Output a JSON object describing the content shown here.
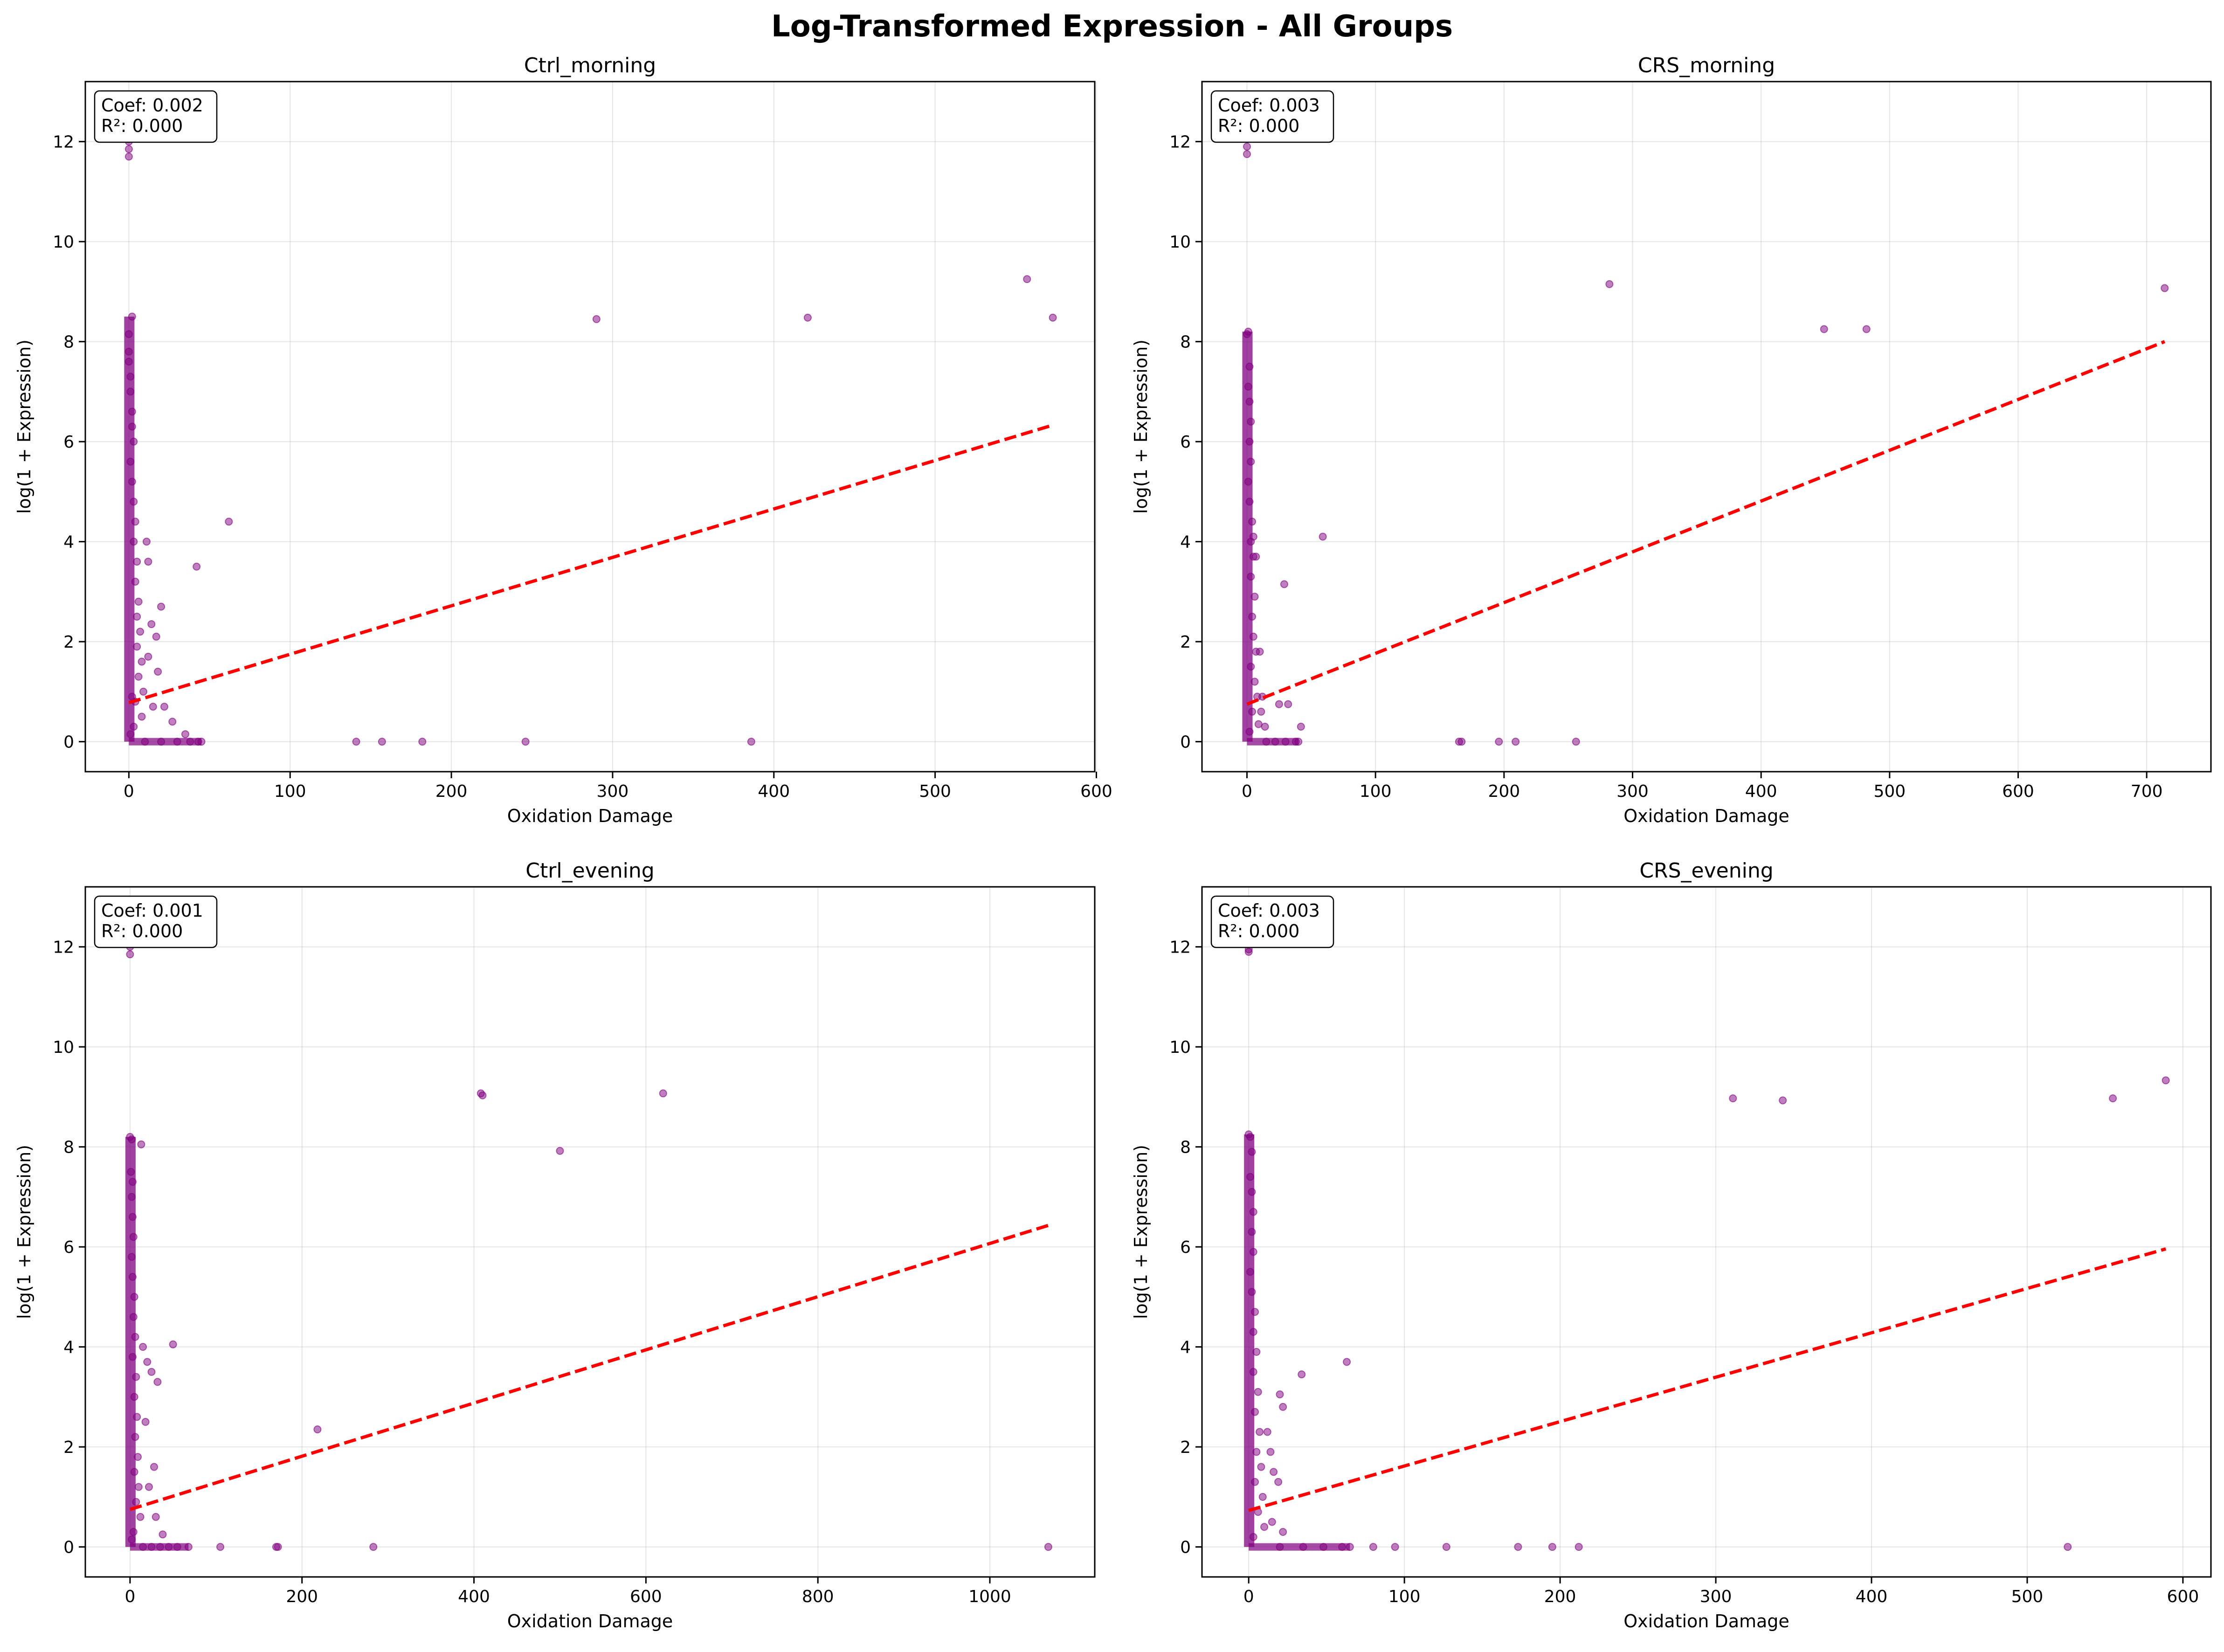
{
  "figure": {
    "title": "Log-Transformed Expression - All Groups"
  },
  "chart_data": [
    {
      "type": "scatter",
      "title": "Ctrl_morning",
      "xlabel": "Oxidation Damage",
      "ylabel": "log(1 + Expression)",
      "xlim": [
        -27,
        599
      ],
      "ylim": [
        -0.6,
        13.2
      ],
      "xticks": [
        0,
        100,
        200,
        300,
        400,
        500,
        600
      ],
      "yticks": [
        0,
        2,
        4,
        6,
        8,
        10,
        12
      ],
      "grid": true,
      "marker_color": "#800080",
      "fit_color": "#ff0000",
      "stats": {
        "coef": "Coef: 0.002",
        "r2": "R²: 0.000"
      },
      "fit_line": {
        "x": [
          0,
          573
        ],
        "y": [
          0.78,
          6.33
        ]
      },
      "points": [
        [
          0,
          11.85
        ],
        [
          0,
          11.7
        ],
        [
          0,
          12.0
        ],
        [
          0,
          8.15
        ],
        [
          0,
          7.8
        ],
        [
          0,
          7.6
        ],
        [
          1,
          7.3
        ],
        [
          1,
          7.0
        ],
        [
          2,
          6.6
        ],
        [
          2,
          6.3
        ],
        [
          3,
          6.0
        ],
        [
          1,
          5.6
        ],
        [
          2,
          5.2
        ],
        [
          3,
          4.8
        ],
        [
          4,
          4.4
        ],
        [
          3,
          4.0
        ],
        [
          5,
          3.6
        ],
        [
          4,
          3.2
        ],
        [
          6,
          2.8
        ],
        [
          5,
          2.5
        ],
        [
          7,
          2.2
        ],
        [
          5,
          1.9
        ],
        [
          8,
          1.6
        ],
        [
          6,
          1.3
        ],
        [
          9,
          1.0
        ],
        [
          4,
          0.8
        ],
        [
          8,
          0.5
        ],
        [
          3,
          0.3
        ],
        [
          1,
          0.15
        ],
        [
          2,
          0.9
        ],
        [
          2,
          8.5
        ],
        [
          11,
          4.0
        ],
        [
          12,
          3.6
        ],
        [
          14,
          2.35
        ],
        [
          17,
          2.1
        ],
        [
          20,
          2.7
        ],
        [
          18,
          1.4
        ],
        [
          12,
          1.7
        ],
        [
          22,
          0.7
        ],
        [
          15,
          0.7
        ],
        [
          27,
          0.4
        ],
        [
          35,
          0.15
        ],
        [
          10,
          0
        ],
        [
          20,
          0
        ],
        [
          30,
          0
        ],
        [
          38,
          0
        ],
        [
          43,
          0
        ],
        [
          45,
          0
        ],
        [
          42,
          3.5
        ],
        [
          62,
          4.4
        ],
        [
          141,
          0
        ],
        [
          157,
          0
        ],
        [
          182,
          0
        ],
        [
          246,
          0
        ],
        [
          386,
          0
        ],
        [
          290,
          8.45
        ],
        [
          421,
          8.48
        ],
        [
          557,
          9.25
        ],
        [
          573,
          8.48
        ]
      ]
    },
    {
      "type": "scatter",
      "title": "CRS_morning",
      "xlabel": "Oxidation Damage",
      "ylabel": "log(1 + Expression)",
      "xlim": [
        -35,
        750
      ],
      "ylim": [
        -0.6,
        13.2
      ],
      "xticks": [
        0,
        100,
        200,
        300,
        400,
        500,
        600,
        700
      ],
      "yticks": [
        0,
        2,
        4,
        6,
        8,
        10,
        12
      ],
      "grid": true,
      "marker_color": "#800080",
      "fit_color": "#ff0000",
      "stats": {
        "coef": "Coef: 0.003",
        "r2": "R²: 0.000"
      },
      "fit_line": {
        "x": [
          0,
          714
        ],
        "y": [
          0.75,
          8.0
        ]
      },
      "points": [
        [
          0,
          11.9
        ],
        [
          0,
          11.75
        ],
        [
          1,
          8.2
        ],
        [
          0,
          8.15
        ],
        [
          2,
          7.5
        ],
        [
          1,
          7.1
        ],
        [
          2,
          6.8
        ],
        [
          3,
          6.4
        ],
        [
          2,
          6.0
        ],
        [
          3,
          5.6
        ],
        [
          1,
          5.2
        ],
        [
          2,
          4.8
        ],
        [
          4,
          4.4
        ],
        [
          3,
          4.0
        ],
        [
          5,
          3.7
        ],
        [
          3,
          3.3
        ],
        [
          6,
          2.9
        ],
        [
          4,
          2.5
        ],
        [
          5,
          2.1
        ],
        [
          7,
          1.8
        ],
        [
          3,
          1.5
        ],
        [
          6,
          1.2
        ],
        [
          8,
          0.9
        ],
        [
          4,
          0.6
        ],
        [
          9,
          0.35
        ],
        [
          2,
          0.2
        ],
        [
          5,
          4.1
        ],
        [
          7,
          3.7
        ],
        [
          10,
          1.8
        ],
        [
          12,
          0.9
        ],
        [
          11,
          0.6
        ],
        [
          14,
          0.3
        ],
        [
          15,
          0
        ],
        [
          22,
          0
        ],
        [
          30,
          0
        ],
        [
          38,
          0
        ],
        [
          40,
          0
        ],
        [
          25,
          0.75
        ],
        [
          32,
          0.75
        ],
        [
          42,
          0.3
        ],
        [
          29,
          3.15
        ],
        [
          59,
          4.1
        ],
        [
          165,
          0
        ],
        [
          167,
          0
        ],
        [
          196,
          0
        ],
        [
          209,
          0
        ],
        [
          256,
          0
        ],
        [
          282,
          9.15
        ],
        [
          449,
          8.25
        ],
        [
          482,
          8.25
        ],
        [
          714,
          9.07
        ]
      ]
    },
    {
      "type": "scatter",
      "title": "Ctrl_evening",
      "xlabel": "Oxidation Damage",
      "ylabel": "log(1 + Expression)",
      "xlim": [
        -52,
        1122
      ],
      "ylim": [
        -0.6,
        13.2
      ],
      "xticks": [
        0,
        200,
        400,
        600,
        800,
        1000
      ],
      "yticks": [
        0,
        2,
        4,
        6,
        8,
        10,
        12
      ],
      "grid": true,
      "marker_color": "#800080",
      "fit_color": "#ff0000",
      "stats": {
        "coef": "Coef: 0.001",
        "r2": "R²: 0.000"
      },
      "fit_line": {
        "x": [
          0,
          1068
        ],
        "y": [
          0.75,
          6.43
        ]
      },
      "points": [
        [
          0,
          12.0
        ],
        [
          0,
          11.85
        ],
        [
          0,
          8.2
        ],
        [
          2,
          8.15
        ],
        [
          13,
          8.05
        ],
        [
          1,
          7.5
        ],
        [
          3,
          7.3
        ],
        [
          2,
          7.0
        ],
        [
          3,
          6.6
        ],
        [
          4,
          6.2
        ],
        [
          2,
          5.8
        ],
        [
          3,
          5.4
        ],
        [
          5,
          5.0
        ],
        [
          4,
          4.6
        ],
        [
          6,
          4.2
        ],
        [
          3,
          3.8
        ],
        [
          7,
          3.4
        ],
        [
          5,
          3.0
        ],
        [
          8,
          2.6
        ],
        [
          6,
          2.2
        ],
        [
          9,
          1.8
        ],
        [
          5,
          1.5
        ],
        [
          10,
          1.2
        ],
        [
          7,
          0.9
        ],
        [
          12,
          0.6
        ],
        [
          4,
          0.3
        ],
        [
          2,
          0.15
        ],
        [
          15,
          4.0
        ],
        [
          20,
          3.7
        ],
        [
          25,
          3.5
        ],
        [
          32,
          3.3
        ],
        [
          18,
          2.5
        ],
        [
          28,
          1.6
        ],
        [
          22,
          1.2
        ],
        [
          30,
          0.6
        ],
        [
          38,
          0.25
        ],
        [
          15,
          0
        ],
        [
          25,
          0
        ],
        [
          35,
          0
        ],
        [
          45,
          0
        ],
        [
          55,
          0
        ],
        [
          68,
          0
        ],
        [
          50,
          4.05
        ],
        [
          105,
          0
        ],
        [
          170,
          0
        ],
        [
          172,
          0
        ],
        [
          218,
          2.35
        ],
        [
          283,
          0
        ],
        [
          408,
          9.07
        ],
        [
          410,
          9.03
        ],
        [
          500,
          7.92
        ],
        [
          620,
          9.07
        ],
        [
          1068,
          0
        ]
      ]
    },
    {
      "type": "scatter",
      "title": "CRS_evening",
      "xlabel": "Oxidation Damage",
      "ylabel": "log(1 + Expression)",
      "xlim": [
        -30,
        618
      ],
      "ylim": [
        -0.6,
        13.2
      ],
      "xticks": [
        0,
        100,
        200,
        300,
        400,
        500,
        600
      ],
      "yticks": [
        0,
        2,
        4,
        6,
        8,
        10,
        12
      ],
      "grid": true,
      "marker_color": "#800080",
      "fit_color": "#ff0000",
      "stats": {
        "coef": "Coef: 0.003",
        "r2": "R²: 0.000"
      },
      "fit_line": {
        "x": [
          0,
          589
        ],
        "y": [
          0.73,
          5.96
        ]
      },
      "points": [
        [
          0,
          11.95
        ],
        [
          0,
          11.9
        ],
        [
          0,
          8.25
        ],
        [
          1,
          8.2
        ],
        [
          2,
          7.9
        ],
        [
          1,
          7.4
        ],
        [
          2,
          7.1
        ],
        [
          3,
          6.7
        ],
        [
          2,
          6.3
        ],
        [
          3,
          5.9
        ],
        [
          1,
          5.5
        ],
        [
          2,
          5.1
        ],
        [
          4,
          4.7
        ],
        [
          3,
          4.3
        ],
        [
          5,
          3.9
        ],
        [
          3,
          3.5
        ],
        [
          6,
          3.1
        ],
        [
          4,
          2.7
        ],
        [
          7,
          2.3
        ],
        [
          5,
          1.9
        ],
        [
          8,
          1.6
        ],
        [
          4,
          1.3
        ],
        [
          9,
          1.0
        ],
        [
          6,
          0.7
        ],
        [
          10,
          0.4
        ],
        [
          3,
          0.2
        ],
        [
          12,
          2.3
        ],
        [
          14,
          1.9
        ],
        [
          16,
          1.5
        ],
        [
          19,
          1.3
        ],
        [
          20,
          3.05
        ],
        [
          22,
          2.8
        ],
        [
          34,
          3.45
        ],
        [
          63,
          3.7
        ],
        [
          15,
          0.5
        ],
        [
          22,
          0.3
        ],
        [
          20,
          0
        ],
        [
          35,
          0
        ],
        [
          48,
          0
        ],
        [
          60,
          0
        ],
        [
          65,
          0
        ],
        [
          80,
          0
        ],
        [
          94,
          0
        ],
        [
          127,
          0
        ],
        [
          173,
          0
        ],
        [
          195,
          0
        ],
        [
          212,
          0
        ],
        [
          311,
          8.97
        ],
        [
          343,
          8.93
        ],
        [
          526,
          0
        ],
        [
          555,
          8.97
        ],
        [
          589,
          9.33
        ]
      ]
    }
  ]
}
